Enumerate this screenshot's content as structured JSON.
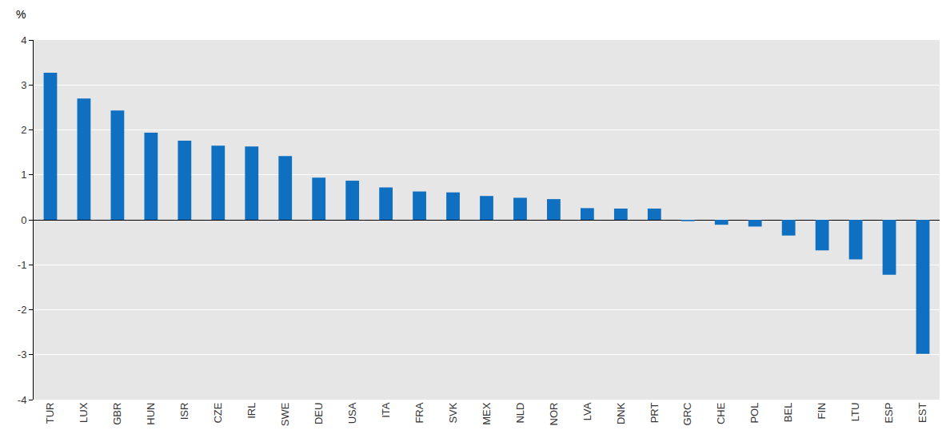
{
  "chart_data": {
    "type": "bar",
    "ylabel": "%",
    "categories": [
      "TUR",
      "LUX",
      "GBR",
      "HUN",
      "ISR",
      "CZE",
      "IRL",
      "SWE",
      "DEU",
      "USA",
      "ITA",
      "FRA",
      "SVK",
      "MEX",
      "NLD",
      "NOR",
      "LVA",
      "DNK",
      "PRT",
      "GRC",
      "CHE",
      "POL",
      "BEL",
      "FIN",
      "LTU",
      "ESP",
      "EST"
    ],
    "values": [
      3.27,
      2.7,
      2.43,
      1.94,
      1.76,
      1.65,
      1.63,
      1.42,
      0.94,
      0.87,
      0.72,
      0.63,
      0.61,
      0.53,
      0.49,
      0.46,
      0.26,
      0.25,
      0.25,
      -0.03,
      -0.11,
      -0.15,
      -0.35,
      -0.68,
      -0.88,
      -1.22,
      -2.98
    ],
    "color": "#0f6fc1",
    "ylim": [
      -4,
      4
    ],
    "yticks": [
      -4,
      -3,
      -2,
      -1,
      0,
      1,
      2,
      3,
      4
    ],
    "grid": true
  }
}
